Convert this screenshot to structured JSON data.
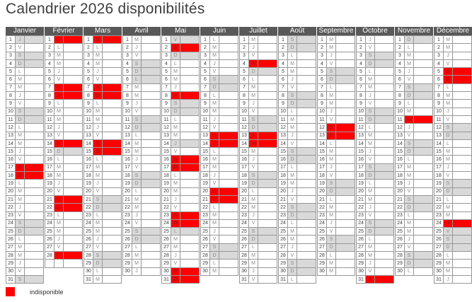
{
  "title": "Calendrier 2026 disponibilités",
  "legend": {
    "unavailable_label": "indisponible"
  },
  "colors": {
    "unavailable": "#ff0000",
    "weekend_holiday": "#d9d9d9",
    "header_bg": "#595959",
    "header_text": "#ffffff"
  },
  "state_legend": {
    "a": "available",
    "g": "weekend-or-holiday",
    "u": "unavailable"
  },
  "months": [
    {
      "name": "Janvier",
      "empty_rows": 0,
      "weekdays": "JVSDLMMJVSDLMMJVSDLMMJVSDLMMJVS",
      "states": "gaggaaaaaggaaaaauuaaaaaggaaaaag"
    },
    {
      "name": "Février",
      "empty_rows": 1,
      "weekdays": "DLMMJVSDLMMJVSDLMMJVSDLMMJVS",
      "states": "uaaaaauuaaaaaugaaaaauuaaaaau"
    },
    {
      "name": "Mars",
      "empty_rows": 0,
      "weekdays": "DLMMJVSDLMMJVSDLMMJVSDLMMJVSDLM",
      "states": "uaaaaauuaaaaauuaaaaaggaaaaaggaa"
    },
    {
      "name": "Avril",
      "empty_rows": 0,
      "weekdays": "MJVSDLMMJVSDLMMJVSDLMMJVSDLMMJ",
      "states": "aaagggaaaaggaaaaaggaaaaaggaaaa"
    },
    {
      "name": "Mai",
      "empty_rows": 0,
      "weekdays": "VSDLMMJVSDLMMJVSDLMMJVSDLMMJVSD",
      "states": "gugaaaauggaaagauuaaaaauugaaaauu"
    },
    {
      "name": "Juin",
      "empty_rows": 0,
      "weekdays": "LMMJVSDLMMJVSDLMMJVSDLMMJVSDLM",
      "states": "aaaaaggaaaaauuaaaaauuaaaaaggaa"
    },
    {
      "name": "Juillet",
      "empty_rows": 0,
      "weekdays": "MJVSDLMMJVSDLMMJVSDLMMJVSDLMMJV",
      "states": "aaaugaaaaagguuaaaggaaaaaggaaaaa"
    },
    {
      "name": "Août",
      "empty_rows": 0,
      "weekdays": "SDLMMJVSDLMMJVSDLMMJVSDLMMJVSDL",
      "states": "ggaaaaaggaaaaaggaaaaaggaaaaagga"
    },
    {
      "name": "Septembre",
      "empty_rows": 0,
      "weekdays": "MMJVSDLMMJVSDLMMJVSDLMMJVSDLMM",
      "states": "aaaaggaaaaauuaaaaaggaaaaaggaaa"
    },
    {
      "name": "Octobre",
      "empty_rows": 0,
      "weekdays": "JVSDLMMJVSDLMMJVSDLMMJVSDLMMJVS",
      "states": "aaggaaaaaggaaaaaggaaaaaggaaaaau"
    },
    {
      "name": "Novembre",
      "empty_rows": 0,
      "weekdays": "DLMMJVSDLMMJVSDLMMJVSDLMMJVSDL",
      "states": "gaaaaaggaauaaggaaaaaggaaaaagga"
    },
    {
      "name": "Décembre",
      "empty_rows": 0,
      "weekdays": "MMJVSDLMMJVSDLMMJVSDLMMJVSDLMMJ",
      "states": "aaaauuaaaaaggaaaaaggaaaugggaaaa"
    }
  ]
}
